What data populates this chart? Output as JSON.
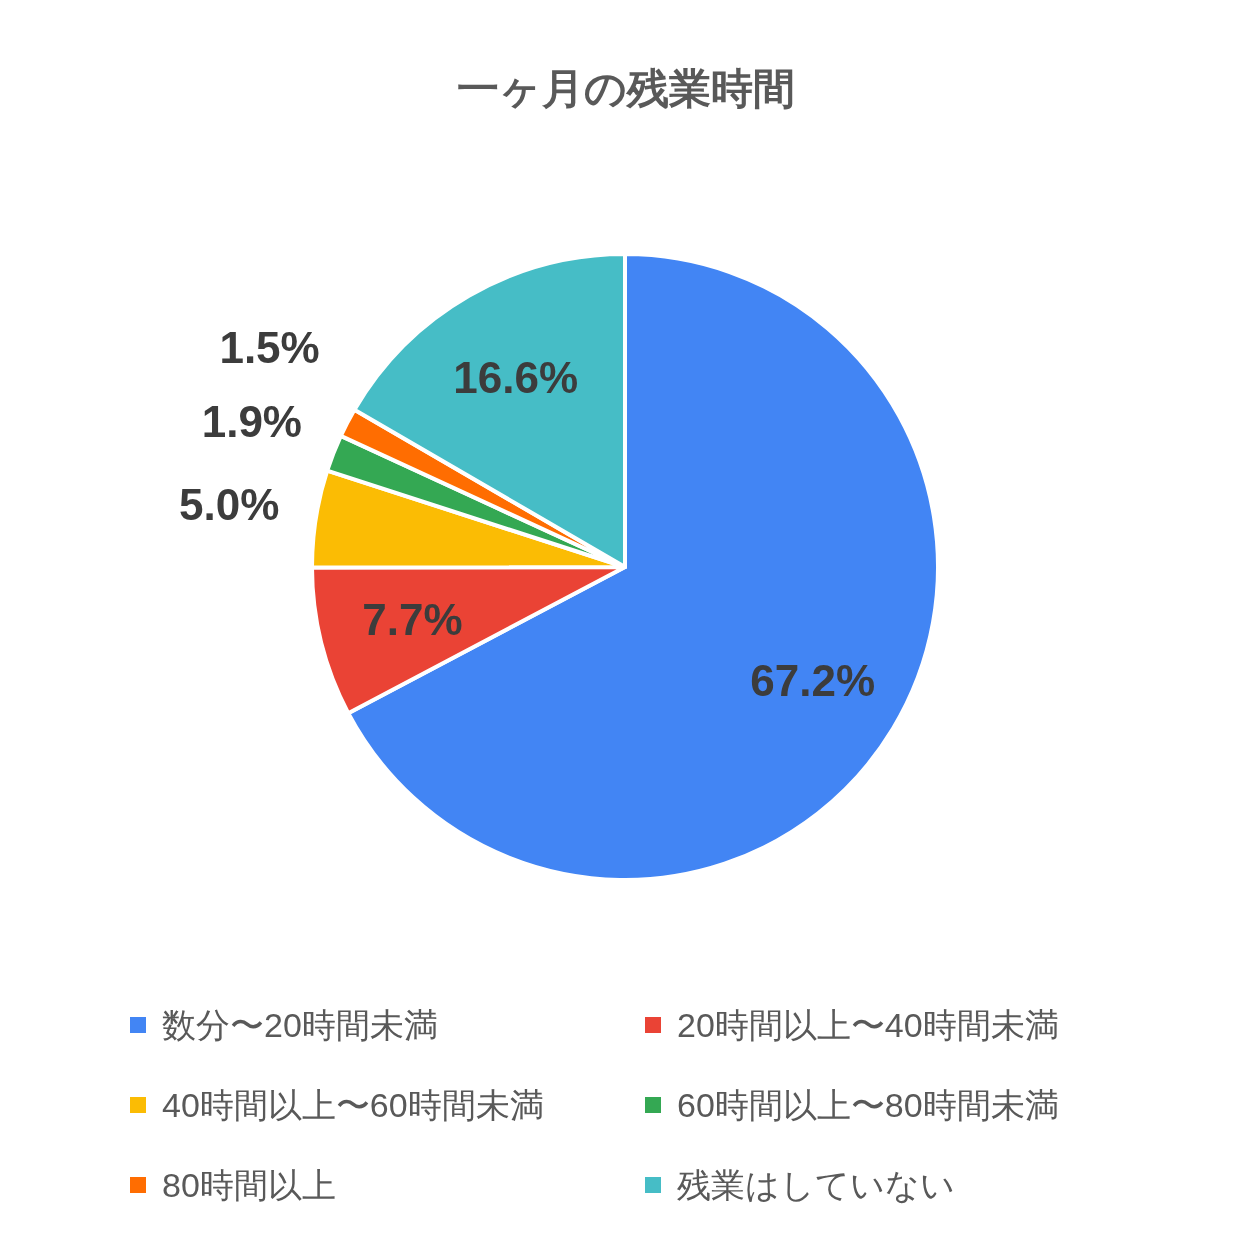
{
  "chart_data": {
    "type": "pie",
    "title": "一ヶ月の残業時間",
    "categories": [
      "数分〜20時間未満",
      "20時間以上〜40時間未満",
      "40時間以上〜60時間未満",
      "60時間以上〜80時間未満",
      "80時間以上",
      "残業はしていない"
    ],
    "values": [
      67.2,
      7.7,
      5.0,
      1.9,
      1.5,
      16.6
    ],
    "colors": [
      "#4285f4",
      "#ea4335",
      "#fbbc04",
      "#34a853",
      "#ff6d01",
      "#46bdc6"
    ],
    "value_labels": [
      "67.2%",
      "7.7%",
      "5.0%",
      "1.9%",
      "1.5%",
      "16.6%"
    ],
    "legend": "bottom"
  }
}
